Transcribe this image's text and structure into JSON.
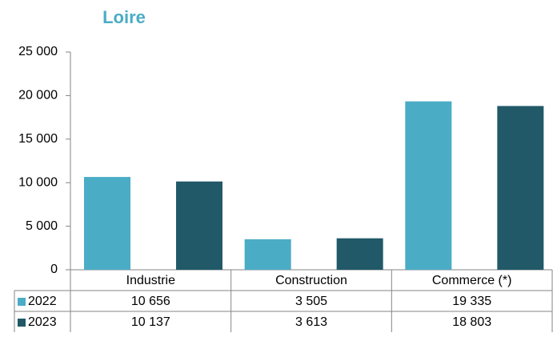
{
  "chart_data": {
    "type": "bar",
    "title": "Loire",
    "categories": [
      "Industrie",
      "Construction",
      "Commerce (*)"
    ],
    "series": [
      {
        "name": "2022",
        "color": "#4bacc6",
        "values": [
          10656,
          3505,
          19335
        ],
        "value_labels": [
          "10 656",
          "3 505",
          "19 335"
        ]
      },
      {
        "name": "2023",
        "color": "#215968",
        "values": [
          10137,
          3613,
          18803
        ],
        "value_labels": [
          "10 137",
          "3 613",
          "18 803"
        ]
      }
    ],
    "ylim": [
      0,
      25000
    ],
    "yticks": [
      {
        "value": 0,
        "label": "0"
      },
      {
        "value": 5000,
        "label": "5 000"
      },
      {
        "value": 10000,
        "label": "10 000"
      },
      {
        "value": 15000,
        "label": "15 000"
      },
      {
        "value": 20000,
        "label": "20 000"
      },
      {
        "value": 25000,
        "label": "25 000"
      }
    ],
    "grid": false
  }
}
